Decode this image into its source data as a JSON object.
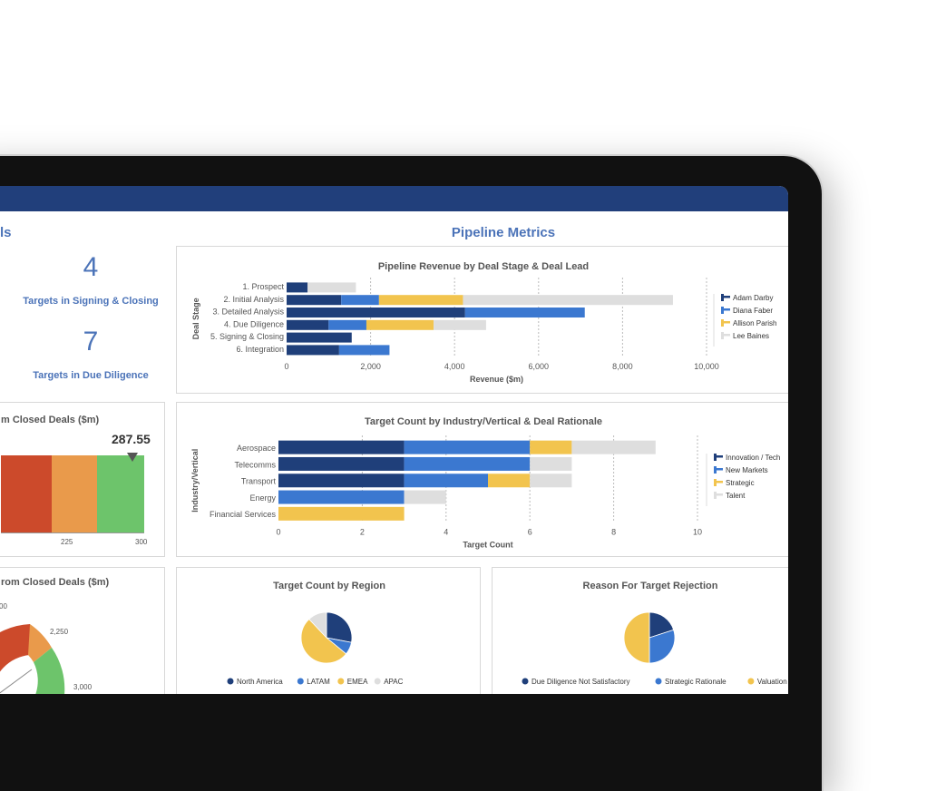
{
  "colors": {
    "dark_blue": "#1f3f7a",
    "mid_blue": "#3b78d0",
    "yellow": "#f2c44e",
    "gray": "#dedede",
    "red": "#cc4a2b",
    "orange": "#e99a4b",
    "green": "#6dc46b",
    "bar": "#213f7b"
  },
  "left_header": "ls",
  "section_title": "Pipeline Metrics",
  "kpis": [
    {
      "value": "4",
      "label": "Targets in Signing & Closing"
    },
    {
      "value": "7",
      "label": "Targets in Due Diligence"
    }
  ],
  "bullet_panel": {
    "title": "m Closed Deals ($m)",
    "value": "287.55",
    "ticks": [
      "225",
      "300"
    ]
  },
  "gauge_panel": {
    "title": "rom Closed Deals ($m)",
    "labels": [
      "00",
      "2,250",
      "3,000"
    ]
  },
  "chart_data": [
    {
      "type": "bar",
      "title": "Pipeline Revenue by Deal Stage & Deal Lead",
      "xlabel": "Revenue ($m)",
      "ylabel": "Deal Stage",
      "categories": [
        "1. Prospect",
        "2. Initial Analysis",
        "3. Detailed Analysis",
        "4. Due Diligence",
        "5. Signing & Closing",
        "6. Integration"
      ],
      "xlim": [
        0,
        10000
      ],
      "xticks": [
        "0",
        "2,000",
        "4,000",
        "6,000",
        "8,000",
        "10,000"
      ],
      "series": [
        {
          "name": "Adam Darby",
          "values": [
            500,
            1300,
            4250,
            1000,
            1550,
            1250
          ]
        },
        {
          "name": "Diana Faber",
          "values": [
            0,
            900,
            2850,
            900,
            0,
            1200
          ]
        },
        {
          "name": "Allison Parish",
          "values": [
            0,
            2000,
            0,
            1600,
            0,
            0
          ]
        },
        {
          "name": "Lee Baines",
          "values": [
            1150,
            5000,
            0,
            1250,
            0,
            0
          ]
        }
      ]
    },
    {
      "type": "bar",
      "title": "Target Count by Industry/Vertical & Deal Rationale",
      "xlabel": "Target Count",
      "ylabel": "Industry/Vertical",
      "categories": [
        "Aerospace",
        "Telecomms",
        "Transport",
        "Energy",
        "Financial Services"
      ],
      "xlim": [
        0,
        10
      ],
      "xticks": [
        "0",
        "2",
        "4",
        "6",
        "8",
        "10"
      ],
      "series": [
        {
          "name": "Innovation / Tech",
          "values": [
            3,
            3,
            3,
            0,
            0
          ]
        },
        {
          "name": "New Markets",
          "values": [
            3,
            3,
            2,
            3,
            0
          ]
        },
        {
          "name": "Strategic",
          "values": [
            1,
            0,
            1,
            0,
            3
          ]
        },
        {
          "name": "Talent",
          "values": [
            2,
            1,
            1,
            1,
            0
          ]
        }
      ]
    },
    {
      "type": "pie",
      "title": "Target Count by Region",
      "series": [
        {
          "name": "North America",
          "value": 7
        },
        {
          "name": "LATAM",
          "value": 2
        },
        {
          "name": "EMEA",
          "value": 13
        },
        {
          "name": "APAC",
          "value": 3
        }
      ]
    },
    {
      "type": "pie",
      "title": "Reason For Target Rejection",
      "series": [
        {
          "name": "Due Diligence Not Satisfactory",
          "value": 2
        },
        {
          "name": "Strategic Rationale",
          "value": 3
        },
        {
          "name": "Valuation",
          "value": 5
        }
      ]
    }
  ]
}
